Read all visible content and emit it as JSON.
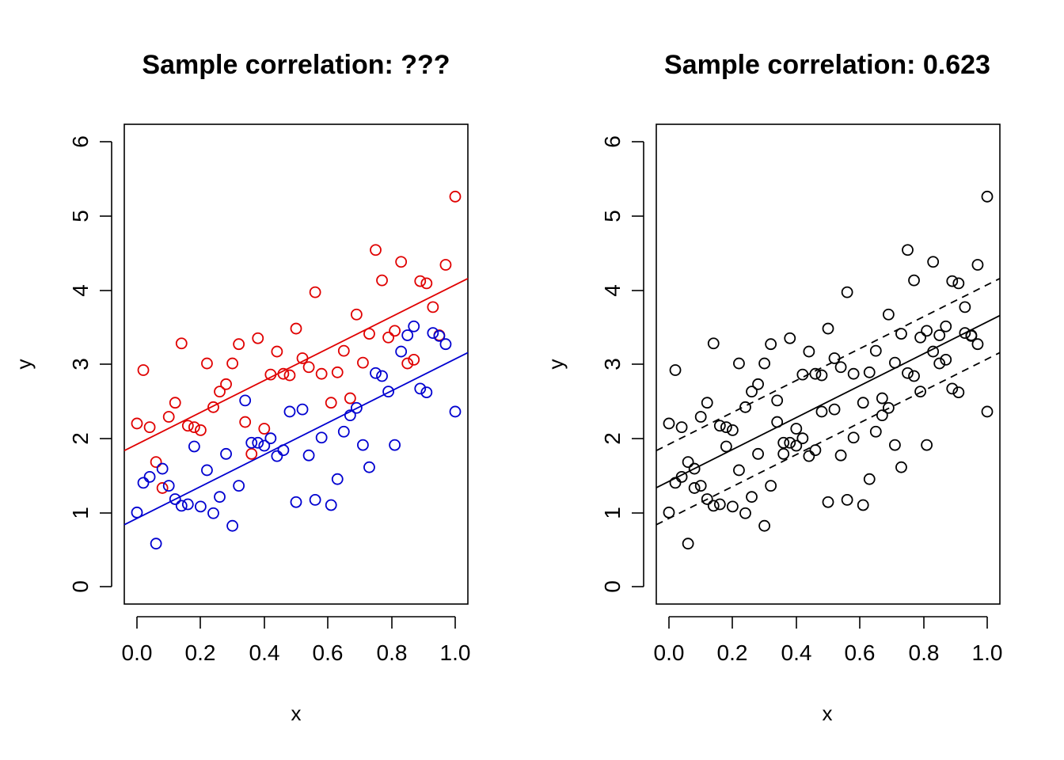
{
  "chart_data": [
    {
      "type": "scatter",
      "title": "Sample correlation: ???",
      "xlabel": "x",
      "ylabel": "y",
      "xlim": [
        0,
        1
      ],
      "ylim": [
        0,
        6
      ],
      "xticks": [
        "0.0",
        "0.2",
        "0.4",
        "0.6",
        "0.8",
        "1.0"
      ],
      "yticks": [
        "0",
        "1",
        "2",
        "3",
        "4",
        "5",
        "6"
      ],
      "series": [
        {
          "color": "#e00000",
          "marker": "open-circle",
          "x": [
            0.0,
            0.02,
            0.04,
            0.06,
            0.08,
            0.1,
            0.12,
            0.14,
            0.16,
            0.18,
            0.2,
            0.22,
            0.24,
            0.26,
            0.28,
            0.3,
            0.32,
            0.34,
            0.36,
            0.38,
            0.4,
            0.42,
            0.44,
            0.46,
            0.48,
            0.5,
            0.52,
            0.54,
            0.56,
            0.58,
            0.61,
            0.63,
            0.65,
            0.67,
            0.69,
            0.71,
            0.73,
            0.75,
            0.77,
            0.79,
            0.81,
            0.83,
            0.85,
            0.87,
            0.89,
            0.91,
            0.93,
            0.95,
            0.97,
            1.0
          ],
          "y": [
            2.2,
            2.92,
            2.15,
            1.68,
            1.33,
            2.29,
            2.48,
            3.28,
            2.17,
            2.15,
            2.11,
            3.01,
            2.42,
            2.63,
            2.73,
            3.01,
            3.27,
            2.22,
            1.79,
            3.35,
            2.13,
            2.86,
            3.17,
            2.87,
            2.85,
            3.48,
            3.08,
            2.96,
            3.97,
            2.87,
            2.48,
            2.89,
            3.18,
            2.54,
            3.67,
            3.02,
            3.41,
            4.54,
            4.13,
            3.36,
            3.45,
            4.38,
            3.01,
            3.06,
            4.12,
            4.09,
            3.77,
            3.39,
            4.34,
            5.26
          ]
        },
        {
          "color": "#0000d0",
          "marker": "open-circle",
          "x": [
            0.0,
            0.02,
            0.04,
            0.06,
            0.08,
            0.1,
            0.12,
            0.14,
            0.16,
            0.18,
            0.2,
            0.22,
            0.24,
            0.26,
            0.28,
            0.3,
            0.32,
            0.34,
            0.36,
            0.38,
            0.4,
            0.42,
            0.44,
            0.46,
            0.48,
            0.5,
            0.52,
            0.54,
            0.56,
            0.58,
            0.61,
            0.63,
            0.65,
            0.67,
            0.69,
            0.71,
            0.73,
            0.75,
            0.77,
            0.79,
            0.81,
            0.83,
            0.85,
            0.87,
            0.89,
            0.91,
            0.93,
            0.95,
            0.97,
            1.0
          ],
          "y": [
            1.0,
            1.4,
            1.48,
            0.58,
            1.59,
            1.36,
            1.18,
            1.09,
            1.11,
            1.89,
            1.08,
            1.57,
            0.99,
            1.21,
            1.79,
            0.82,
            1.36,
            2.51,
            1.94,
            1.94,
            1.9,
            2.0,
            1.76,
            1.84,
            2.36,
            1.14,
            2.39,
            1.77,
            1.17,
            2.01,
            1.1,
            1.45,
            2.09,
            2.31,
            2.41,
            1.91,
            1.61,
            2.88,
            2.84,
            2.63,
            1.91,
            3.17,
            3.39,
            3.51,
            2.67,
            2.62,
            3.42,
            3.38,
            3.27,
            2.36
          ]
        }
      ],
      "lines": [
        {
          "color": "#e00000",
          "style": "solid",
          "intercept": 1.92,
          "slope": 2.15
        },
        {
          "color": "#0000d0",
          "style": "solid",
          "intercept": 0.92,
          "slope": 2.15
        }
      ]
    },
    {
      "type": "scatter",
      "title": "Sample correlation: 0.623",
      "xlabel": "x",
      "ylabel": "y",
      "xlim": [
        0,
        1
      ],
      "ylim": [
        0,
        6
      ],
      "xticks": [
        "0.0",
        "0.2",
        "0.4",
        "0.6",
        "0.8",
        "1.0"
      ],
      "yticks": [
        "0",
        "1",
        "2",
        "3",
        "4",
        "5",
        "6"
      ],
      "series": [
        {
          "color": "#000000",
          "marker": "open-circle",
          "x": [
            0.0,
            0.02,
            0.04,
            0.06,
            0.08,
            0.1,
            0.12,
            0.14,
            0.16,
            0.18,
            0.2,
            0.22,
            0.24,
            0.26,
            0.28,
            0.3,
            0.32,
            0.34,
            0.36,
            0.38,
            0.4,
            0.42,
            0.44,
            0.46,
            0.48,
            0.5,
            0.52,
            0.54,
            0.56,
            0.58,
            0.61,
            0.63,
            0.65,
            0.67,
            0.69,
            0.71,
            0.73,
            0.75,
            0.77,
            0.79,
            0.81,
            0.83,
            0.85,
            0.87,
            0.89,
            0.91,
            0.93,
            0.95,
            0.97,
            1.0,
            0.0,
            0.02,
            0.04,
            0.06,
            0.08,
            0.1,
            0.12,
            0.14,
            0.16,
            0.18,
            0.2,
            0.22,
            0.24,
            0.26,
            0.28,
            0.3,
            0.32,
            0.34,
            0.36,
            0.38,
            0.4,
            0.42,
            0.44,
            0.46,
            0.48,
            0.5,
            0.52,
            0.54,
            0.56,
            0.58,
            0.61,
            0.63,
            0.65,
            0.67,
            0.69,
            0.71,
            0.73,
            0.75,
            0.77,
            0.79,
            0.81,
            0.83,
            0.85,
            0.87,
            0.89,
            0.91,
            0.93,
            0.95,
            0.97,
            1.0
          ],
          "y": [
            2.2,
            2.92,
            2.15,
            1.68,
            1.33,
            2.29,
            2.48,
            3.28,
            2.17,
            2.15,
            2.11,
            3.01,
            2.42,
            2.63,
            2.73,
            3.01,
            3.27,
            2.22,
            1.79,
            3.35,
            2.13,
            2.86,
            3.17,
            2.87,
            2.85,
            3.48,
            3.08,
            2.96,
            3.97,
            2.87,
            2.48,
            2.89,
            3.18,
            2.54,
            3.67,
            3.02,
            3.41,
            4.54,
            4.13,
            3.36,
            3.45,
            4.38,
            3.01,
            3.06,
            4.12,
            4.09,
            3.77,
            3.39,
            4.34,
            5.26,
            1.0,
            1.4,
            1.48,
            0.58,
            1.59,
            1.36,
            1.18,
            1.09,
            1.11,
            1.89,
            1.08,
            1.57,
            0.99,
            1.21,
            1.79,
            0.82,
            1.36,
            2.51,
            1.94,
            1.94,
            1.9,
            2.0,
            1.76,
            1.84,
            2.36,
            1.14,
            2.39,
            1.77,
            1.17,
            2.01,
            1.1,
            1.45,
            2.09,
            2.31,
            2.41,
            1.91,
            1.61,
            2.88,
            2.84,
            2.63,
            1.91,
            3.17,
            3.39,
            3.51,
            2.67,
            2.62,
            3.42,
            3.38,
            3.27,
            2.36
          ]
        }
      ],
      "lines": [
        {
          "color": "#000000",
          "style": "solid",
          "intercept": 1.42,
          "slope": 2.15
        },
        {
          "color": "#000000",
          "style": "dashed",
          "intercept": 1.92,
          "slope": 2.15
        },
        {
          "color": "#000000",
          "style": "dashed",
          "intercept": 0.92,
          "slope": 2.15
        }
      ]
    }
  ]
}
